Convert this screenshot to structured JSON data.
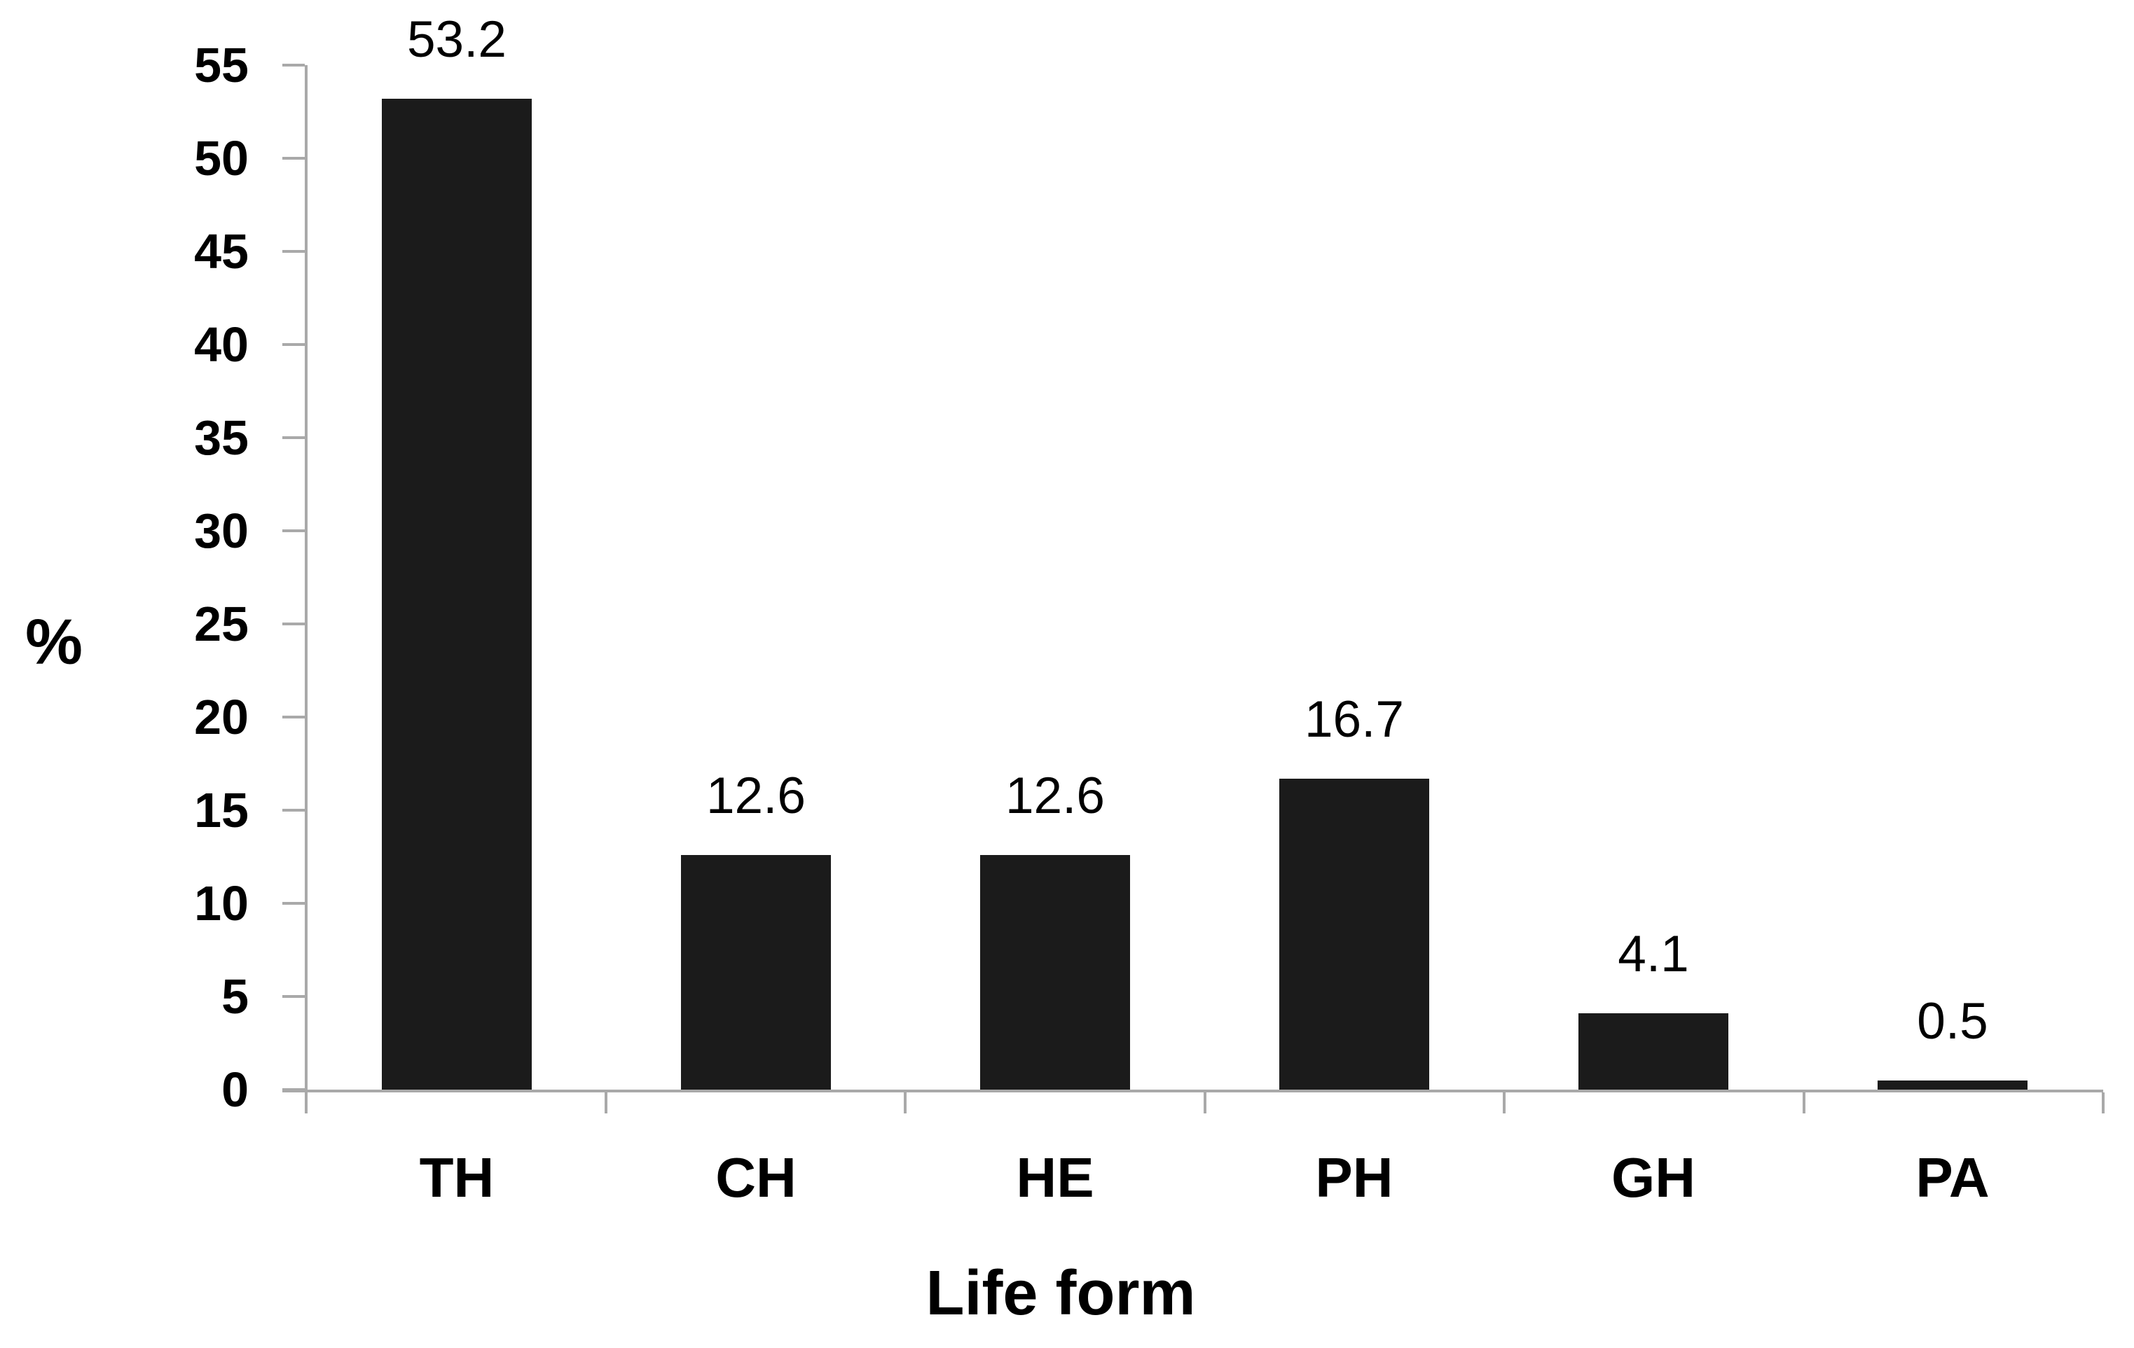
{
  "chart_data": {
    "type": "bar",
    "categories": [
      "TH",
      "CH",
      "HE",
      "PH",
      "GH",
      "PA"
    ],
    "values": [
      53.2,
      12.6,
      12.6,
      16.7,
      4.1,
      0.5
    ],
    "value_labels": [
      "53.2",
      "12.6",
      "12.6",
      "16.7",
      "4.1",
      "0.5"
    ],
    "title": "",
    "xlabel": "Life form",
    "ylabel": "%",
    "ylim": [
      0,
      55
    ],
    "ytick_step": 5,
    "ytick_labels": [
      "0",
      "5",
      "10",
      "15",
      "20",
      "25",
      "30",
      "35",
      "40",
      "45",
      "50",
      "55"
    ],
    "grid": false,
    "legend": null,
    "colors": {
      "bar": "#1b1b1b",
      "axis": "#a9a9a9",
      "text": "#000000",
      "background": "#ffffff"
    }
  }
}
